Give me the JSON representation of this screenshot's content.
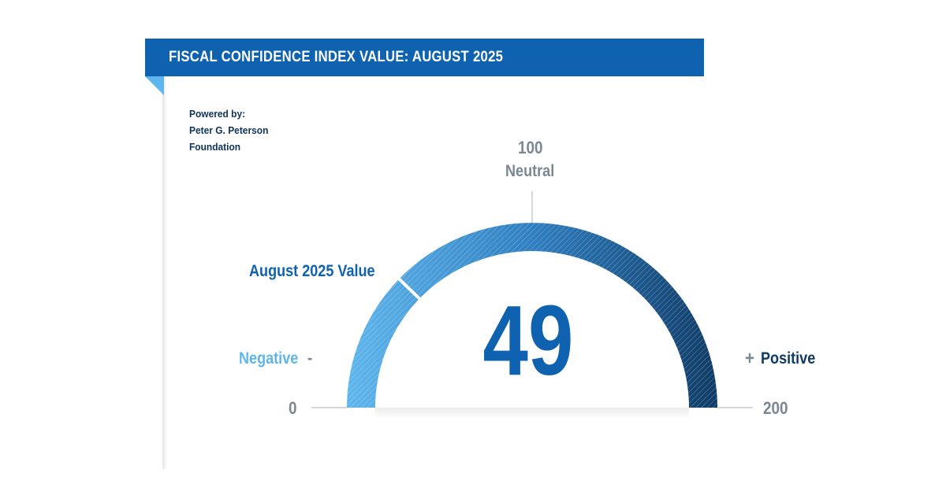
{
  "header": {
    "title": "FISCAL CONFIDENCE INDEX VALUE: AUGUST 2025"
  },
  "credit": {
    "line1": "Powered by:",
    "line2": "Peter G. Peterson",
    "line3": "Foundation"
  },
  "chart_data": {
    "type": "gauge",
    "value": 49,
    "min": 0,
    "max": 200,
    "midpoint": 100,
    "value_label": "August 2025 Value",
    "labels": {
      "min": "0",
      "max": "200",
      "mid": "100",
      "mid_text": "Neutral",
      "negative": "Negative",
      "negative_sign": "-",
      "positive": "Positive",
      "positive_sign": "+"
    },
    "colors": {
      "light": "#5fb6ec",
      "mid": "#2f7fc1",
      "dark": "#0f3b66",
      "value_text": "#0f62af",
      "header": "#0f62af"
    }
  }
}
